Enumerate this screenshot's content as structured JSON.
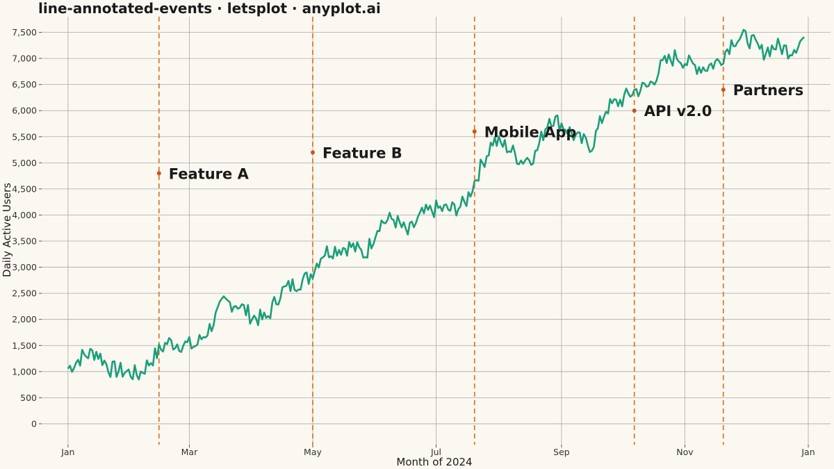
{
  "title": "line-annotated-events · letsplot · anyplot.ai",
  "chart_data": {
    "type": "line",
    "xlabel": "Month of 2024",
    "ylabel": "Daily Active Users",
    "ylim": [
      -400,
      7800
    ],
    "yticks": [
      0,
      500,
      1000,
      1500,
      2000,
      2500,
      3000,
      3500,
      4000,
      4500,
      5000,
      5500,
      6000,
      6500,
      7000,
      7500
    ],
    "ytick_labels": [
      "0",
      "500",
      "1,000",
      "1,500",
      "2,000",
      "2,500",
      "3,000",
      "3,500",
      "4,000",
      "4,500",
      "5,000",
      "5,500",
      "6,000",
      "6,500",
      "7,000",
      "7,500"
    ],
    "xrange": [
      "2023-12-19",
      "2025-01-12"
    ],
    "xticks": [
      "2024-01-01",
      "2024-03-01",
      "2024-05-01",
      "2024-07-01",
      "2024-09-01",
      "2024-11-01",
      "2025-01-01"
    ],
    "xtick_labels": [
      "Jan",
      "Mar",
      "May",
      "Jul",
      "Sep",
      "Nov",
      "Jan"
    ],
    "grid": true,
    "line_color": "#1A9E7A",
    "event_color": "#E07A24",
    "marker_color": "#C8551B",
    "series": [
      {
        "points": [
          [
            "2024-01-01",
            1060
          ],
          [
            "2024-01-08",
            1290
          ],
          [
            "2024-01-15",
            1380
          ],
          [
            "2024-01-22",
            1050
          ],
          [
            "2024-01-29",
            1000
          ],
          [
            "2024-02-05",
            940
          ],
          [
            "2024-02-12",
            1260
          ],
          [
            "2024-02-19",
            1560
          ],
          [
            "2024-02-26",
            1530
          ],
          [
            "2024-03-04",
            1490
          ],
          [
            "2024-03-11",
            1830
          ],
          [
            "2024-03-18",
            2320
          ],
          [
            "2024-03-25",
            2300
          ],
          [
            "2024-04-01",
            2050
          ],
          [
            "2024-04-08",
            2000
          ],
          [
            "2024-04-15",
            2520
          ],
          [
            "2024-04-22",
            2680
          ],
          [
            "2024-04-29",
            2800
          ],
          [
            "2024-05-06",
            3280
          ],
          [
            "2024-05-13",
            3360
          ],
          [
            "2024-05-20",
            3400
          ],
          [
            "2024-05-27",
            3240
          ],
          [
            "2024-06-03",
            3850
          ],
          [
            "2024-06-10",
            3930
          ],
          [
            "2024-06-17",
            3640
          ],
          [
            "2024-06-24",
            4000
          ],
          [
            "2024-07-01",
            4120
          ],
          [
            "2024-07-08",
            4100
          ],
          [
            "2024-07-15",
            4200
          ],
          [
            "2024-07-22",
            4820
          ],
          [
            "2024-07-29",
            5420
          ],
          [
            "2024-08-05",
            5310
          ],
          [
            "2024-08-12",
            5050
          ],
          [
            "2024-08-19",
            5150
          ],
          [
            "2024-08-26",
            5880
          ],
          [
            "2024-09-02",
            5720
          ],
          [
            "2024-09-09",
            5450
          ],
          [
            "2024-09-16",
            5330
          ],
          [
            "2024-09-23",
            6040
          ],
          [
            "2024-09-30",
            6180
          ],
          [
            "2024-10-07",
            6380
          ],
          [
            "2024-10-14",
            6460
          ],
          [
            "2024-10-21",
            6880
          ],
          [
            "2024-10-28",
            7050
          ],
          [
            "2024-11-04",
            6870
          ],
          [
            "2024-11-11",
            6830
          ],
          [
            "2024-11-18",
            6950
          ],
          [
            "2024-11-25",
            7370
          ],
          [
            "2024-12-02",
            7400
          ],
          [
            "2024-12-09",
            7120
          ],
          [
            "2024-12-16",
            7240
          ],
          [
            "2024-12-23",
            7150
          ],
          [
            "2024-12-30",
            7400
          ]
        ]
      }
    ],
    "events": [
      {
        "date": "2024-02-15",
        "label": "Feature A",
        "marker_y": 4800
      },
      {
        "date": "2024-05-01",
        "label": "Feature B",
        "marker_y": 5200
      },
      {
        "date": "2024-07-20",
        "label": "Mobile App",
        "marker_y": 5600
      },
      {
        "date": "2024-10-07",
        "label": "API v2.0",
        "marker_y": 6000
      },
      {
        "date": "2024-11-20",
        "label": "Partners",
        "marker_y": 6400
      }
    ]
  }
}
